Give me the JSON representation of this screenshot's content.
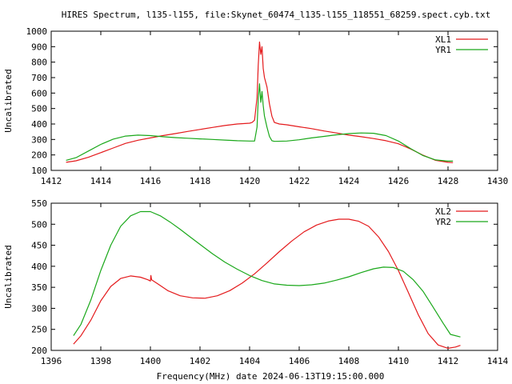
{
  "figure": {
    "title": "HIRES Spectrum, l135-l155, file:Skynet_60474_l135-l155_118551_68259.spect.cyb.txt",
    "xlabel": "Frequency(MHz) date 2024-06-13T19:15:00.000"
  },
  "colors": {
    "XL": "#e41a1c",
    "YR": "#1aa81a",
    "axis": "#000000",
    "background": "#ffffff"
  },
  "chart_data": [
    {
      "type": "line",
      "title": "HIRES Spectrum, l135-l155, file:Skynet_60474_l135-l155_118551_68259.spect.cyb.txt",
      "xlabel": "",
      "ylabel": "Uncalibrated",
      "xlim": [
        1412,
        1430
      ],
      "ylim": [
        100,
        1000
      ],
      "xticks": [
        1412,
        1414,
        1416,
        1418,
        1420,
        1422,
        1424,
        1426,
        1428,
        1430
      ],
      "yticks": [
        100,
        200,
        300,
        400,
        500,
        600,
        700,
        800,
        900,
        1000
      ],
      "grid": false,
      "legend_position": "top-right",
      "series": [
        {
          "name": "XL1",
          "color": "#e41a1c",
          "x": [
            1412.6,
            1413.0,
            1413.5,
            1414.0,
            1414.5,
            1415.0,
            1415.5,
            1416.0,
            1416.5,
            1417.0,
            1417.5,
            1418.0,
            1418.5,
            1419.0,
            1419.5,
            1420.0,
            1420.1,
            1420.2,
            1420.3,
            1420.35,
            1420.4,
            1420.45,
            1420.5,
            1420.55,
            1420.6,
            1420.7,
            1420.8,
            1420.9,
            1421.0,
            1421.2,
            1421.5,
            1422.0,
            1422.5,
            1423.0,
            1423.5,
            1424.0,
            1424.5,
            1425.0,
            1425.5,
            1426.0,
            1426.5,
            1427.0,
            1427.5,
            1428.0,
            1428.2
          ],
          "y": [
            152,
            162,
            185,
            215,
            245,
            275,
            295,
            310,
            325,
            338,
            352,
            365,
            378,
            390,
            400,
            405,
            410,
            425,
            570,
            780,
            930,
            850,
            900,
            760,
            700,
            640,
            530,
            450,
            410,
            400,
            395,
            382,
            370,
            355,
            342,
            328,
            318,
            306,
            292,
            272,
            238,
            198,
            165,
            152,
            150
          ]
        },
        {
          "name": "YR1",
          "color": "#1aa81a",
          "x": [
            1412.6,
            1413.0,
            1413.5,
            1414.0,
            1414.5,
            1415.0,
            1415.5,
            1416.0,
            1416.5,
            1417.0,
            1417.5,
            1418.0,
            1418.5,
            1419.0,
            1419.5,
            1420.0,
            1420.2,
            1420.3,
            1420.35,
            1420.4,
            1420.45,
            1420.5,
            1420.55,
            1420.6,
            1420.7,
            1420.8,
            1420.9,
            1421.0,
            1421.5,
            1422.0,
            1422.5,
            1423.0,
            1423.5,
            1424.0,
            1424.5,
            1425.0,
            1425.5,
            1426.0,
            1426.5,
            1427.0,
            1427.5,
            1428.0,
            1428.2
          ],
          "y": [
            165,
            182,
            225,
            268,
            302,
            322,
            328,
            325,
            318,
            312,
            308,
            304,
            300,
            296,
            292,
            290,
            290,
            380,
            560,
            660,
            540,
            610,
            520,
            450,
            380,
            320,
            292,
            288,
            290,
            298,
            310,
            320,
            330,
            338,
            342,
            340,
            325,
            290,
            240,
            195,
            168,
            160,
            160
          ]
        }
      ]
    },
    {
      "type": "line",
      "title": "",
      "xlabel": "Frequency(MHz) date 2024-06-13T19:15:00.000",
      "ylabel": "Uncalibrated",
      "xlim": [
        1396,
        1414
      ],
      "ylim": [
        200,
        550
      ],
      "xticks": [
        1396,
        1398,
        1400,
        1402,
        1404,
        1406,
        1408,
        1410,
        1412,
        1414
      ],
      "yticks": [
        200,
        250,
        300,
        350,
        400,
        450,
        500,
        550
      ],
      "grid": false,
      "legend_position": "top-right",
      "series": [
        {
          "name": "XL2",
          "color": "#e41a1c",
          "x": [
            1396.9,
            1397.2,
            1397.6,
            1398.0,
            1398.4,
            1398.8,
            1399.2,
            1399.6,
            1399.9,
            1400.0,
            1400.02,
            1400.05,
            1400.3,
            1400.7,
            1401.2,
            1401.7,
            1402.2,
            1402.7,
            1403.2,
            1403.7,
            1404.2,
            1404.7,
            1405.2,
            1405.7,
            1406.2,
            1406.7,
            1407.2,
            1407.6,
            1408.0,
            1408.4,
            1408.8,
            1409.2,
            1409.6,
            1410.0,
            1410.4,
            1410.8,
            1411.2,
            1411.6,
            1412.0,
            1412.3,
            1412.5
          ],
          "y": [
            215,
            235,
            272,
            318,
            352,
            371,
            377,
            374,
            368,
            365,
            378,
            368,
            358,
            342,
            330,
            325,
            324,
            330,
            342,
            360,
            382,
            408,
            435,
            460,
            482,
            498,
            508,
            512,
            512,
            507,
            495,
            470,
            435,
            390,
            338,
            285,
            240,
            213,
            205,
            208,
            212
          ]
        },
        {
          "name": "YR2",
          "color": "#1aa81a",
          "x": [
            1396.9,
            1397.2,
            1397.6,
            1398.0,
            1398.4,
            1398.8,
            1399.2,
            1399.6,
            1400.0,
            1400.4,
            1400.8,
            1401.2,
            1401.6,
            1402.0,
            1402.5,
            1403.0,
            1403.5,
            1404.0,
            1404.5,
            1405.0,
            1405.5,
            1406.0,
            1406.5,
            1407.0,
            1407.5,
            1408.0,
            1408.5,
            1409.0,
            1409.4,
            1409.8,
            1410.2,
            1410.6,
            1411.0,
            1411.4,
            1411.8,
            1412.1,
            1412.5
          ],
          "y": [
            235,
            262,
            320,
            390,
            450,
            495,
            520,
            530,
            530,
            520,
            505,
            488,
            470,
            452,
            430,
            410,
            393,
            378,
            366,
            358,
            355,
            354,
            356,
            360,
            367,
            375,
            385,
            394,
            398,
            397,
            388,
            368,
            340,
            303,
            265,
            238,
            232
          ]
        }
      ]
    }
  ]
}
